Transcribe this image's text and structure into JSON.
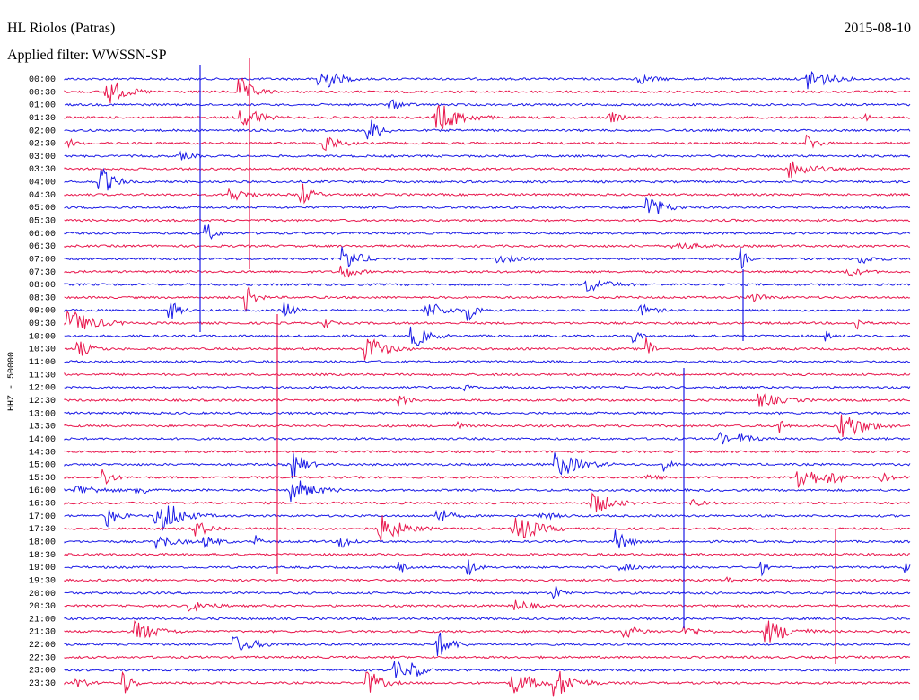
{
  "header": {
    "station": "HL Riolos (Patras)",
    "date": "2015-08-10",
    "filter": "Applied filter: WWSSN-SP"
  },
  "axis_label": "HHZ - 50000",
  "rows": [
    "00:00",
    "00:30",
    "01:00",
    "01:30",
    "02:00",
    "02:30",
    "03:00",
    "03:30",
    "04:00",
    "04:30",
    "05:00",
    "05:30",
    "06:00",
    "06:30",
    "07:00",
    "07:30",
    "08:00",
    "08:30",
    "09:00",
    "09:30",
    "10:00",
    "10:30",
    "11:00",
    "11:30",
    "12:00",
    "12:30",
    "13:00",
    "13:30",
    "14:00",
    "14:30",
    "15:00",
    "15:30",
    "16:00",
    "16:30",
    "17:00",
    "17:30",
    "18:00",
    "18:30",
    "19:00",
    "19:30",
    "20:00",
    "20:30",
    "21:00",
    "21:30",
    "22:00",
    "22:30",
    "23:00",
    "23:30"
  ]
}
